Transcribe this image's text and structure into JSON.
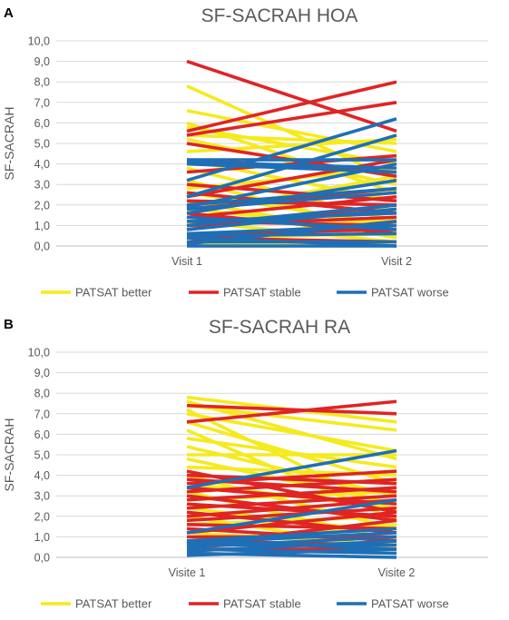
{
  "colors": {
    "better": "#f5ea1f",
    "stable": "#e02424",
    "worse": "#1f6fb6",
    "text": "#595959"
  },
  "chart_data": [
    {
      "panel_label": "A",
      "type": "line",
      "title": "SF-SACRAH HOA",
      "ylabel": "SF-SACRAH",
      "xlabel": "",
      "categories": [
        "Visit 1",
        "Visit 2"
      ],
      "ylim": [
        0,
        10
      ],
      "yticks": [
        "0,0",
        "1,0",
        "2,0",
        "3,0",
        "4,0",
        "5,0",
        "6,0",
        "7,0",
        "8,0",
        "9,0",
        "10,0"
      ],
      "grid": true,
      "legend": "bottom",
      "legend_labels": [
        "PATSAT better",
        "PATSAT stable",
        "PATSAT worse"
      ],
      "groups": [
        {
          "key": "better",
          "pairs": [
            [
              7.8,
              3.2
            ],
            [
              6.6,
              4.6
            ],
            [
              6.0,
              2.6
            ],
            [
              5.8,
              4.0
            ],
            [
              5.4,
              5.0
            ],
            [
              5.2,
              3.0
            ],
            [
              4.6,
              5.2
            ],
            [
              4.2,
              2.2
            ],
            [
              3.8,
              1.2
            ],
            [
              3.2,
              0.6
            ],
            [
              2.8,
              3.8
            ],
            [
              2.6,
              1.0
            ],
            [
              2.2,
              0.4
            ],
            [
              2.0,
              2.6
            ],
            [
              1.8,
              0.8
            ],
            [
              1.6,
              3.4
            ],
            [
              1.4,
              1.2
            ],
            [
              1.2,
              0.2
            ],
            [
              1.0,
              1.8
            ],
            [
              0.6,
              0.0
            ],
            [
              0.4,
              0.6
            ],
            [
              0.2,
              1.4
            ],
            [
              0.1,
              0.2
            ]
          ]
        },
        {
          "key": "stable",
          "pairs": [
            [
              9.0,
              5.6
            ],
            [
              5.6,
              8.0
            ],
            [
              5.4,
              7.0
            ],
            [
              5.0,
              3.4
            ],
            [
              4.2,
              3.6
            ],
            [
              3.6,
              4.4
            ],
            [
              3.0,
              2.2
            ],
            [
              2.6,
              1.6
            ],
            [
              2.4,
              4.2
            ],
            [
              2.2,
              2.0
            ],
            [
              1.8,
              2.8
            ],
            [
              1.6,
              0.6
            ],
            [
              1.4,
              2.4
            ],
            [
              1.2,
              1.0
            ],
            [
              1.0,
              1.4
            ],
            [
              0.8,
              2.0
            ],
            [
              0.6,
              0.8
            ],
            [
              0.4,
              0.2
            ],
            [
              0.2,
              1.2
            ]
          ]
        },
        {
          "key": "worse",
          "pairs": [
            [
              4.2,
              4.2
            ],
            [
              4.1,
              3.8
            ],
            [
              4.0,
              3.6
            ],
            [
              3.2,
              6.2
            ],
            [
              2.4,
              5.4
            ],
            [
              2.0,
              2.8
            ],
            [
              1.9,
              4.0
            ],
            [
              1.8,
              2.6
            ],
            [
              1.6,
              3.2
            ],
            [
              1.4,
              0.8
            ],
            [
              1.2,
              1.6
            ],
            [
              1.0,
              2.0
            ],
            [
              0.8,
              1.8
            ],
            [
              0.6,
              1.0
            ],
            [
              0.5,
              0.6
            ],
            [
              0.4,
              0.0
            ],
            [
              0.2,
              0.2
            ],
            [
              0.1,
              1.2
            ],
            [
              0.0,
              0.0
            ]
          ]
        }
      ]
    },
    {
      "panel_label": "B",
      "type": "line",
      "title": "SF-SACRAH RA",
      "ylabel": "SF-SACRAH",
      "xlabel": "",
      "categories": [
        "Visite 1",
        "Visite 2"
      ],
      "ylim": [
        0,
        10
      ],
      "yticks": [
        "0,0",
        "1,0",
        "2,0",
        "3,0",
        "4,0",
        "5,0",
        "6,0",
        "7,0",
        "8,0",
        "9,0",
        "10,0"
      ],
      "grid": true,
      "legend": "bottom",
      "legend_labels": [
        "PATSAT better",
        "PATSAT stable",
        "PATSAT worse"
      ],
      "groups": [
        {
          "key": "better",
          "pairs": [
            [
              7.8,
              6.6
            ],
            [
              7.6,
              4.8
            ],
            [
              7.4,
              6.2
            ],
            [
              7.2,
              2.2
            ],
            [
              7.0,
              5.2
            ],
            [
              6.6,
              3.6
            ],
            [
              6.2,
              1.8
            ],
            [
              5.8,
              4.4
            ],
            [
              5.4,
              3.0
            ],
            [
              5.0,
              5.0
            ],
            [
              4.8,
              2.6
            ],
            [
              4.4,
              4.0
            ],
            [
              4.0,
              1.4
            ],
            [
              3.6,
              2.4
            ],
            [
              3.2,
              0.8
            ],
            [
              2.8,
              3.2
            ],
            [
              2.4,
              1.2
            ],
            [
              2.0,
              0.4
            ],
            [
              1.6,
              2.0
            ],
            [
              1.2,
              0.6
            ],
            [
              0.8,
              1.6
            ],
            [
              0.4,
              0.2
            ]
          ]
        },
        {
          "key": "stable",
          "pairs": [
            [
              7.4,
              7.0
            ],
            [
              6.6,
              7.6
            ],
            [
              4.2,
              2.2
            ],
            [
              4.0,
              3.6
            ],
            [
              3.8,
              3.2
            ],
            [
              3.6,
              4.2
            ],
            [
              3.4,
              2.6
            ],
            [
              3.2,
              3.8
            ],
            [
              3.0,
              1.8
            ],
            [
              2.8,
              3.4
            ],
            [
              2.6,
              2.0
            ],
            [
              2.4,
              3.0
            ],
            [
              2.2,
              1.2
            ],
            [
              2.0,
              2.8
            ],
            [
              1.8,
              2.4
            ],
            [
              1.6,
              1.4
            ],
            [
              1.4,
              0.8
            ],
            [
              1.2,
              2.2
            ],
            [
              1.0,
              1.0
            ],
            [
              0.8,
              0.6
            ],
            [
              0.6,
              1.8
            ],
            [
              0.4,
              0.4
            ]
          ]
        },
        {
          "key": "worse",
          "pairs": [
            [
              3.4,
              5.2
            ],
            [
              1.2,
              2.8
            ],
            [
              0.8,
              1.4
            ],
            [
              0.8,
              0.4
            ],
            [
              0.7,
              1.2
            ],
            [
              0.6,
              0.6
            ],
            [
              0.5,
              1.0
            ],
            [
              0.4,
              0.2
            ],
            [
              0.3,
              0.8
            ],
            [
              0.2,
              0.0
            ],
            [
              0.1,
              0.4
            ]
          ]
        }
      ]
    }
  ]
}
